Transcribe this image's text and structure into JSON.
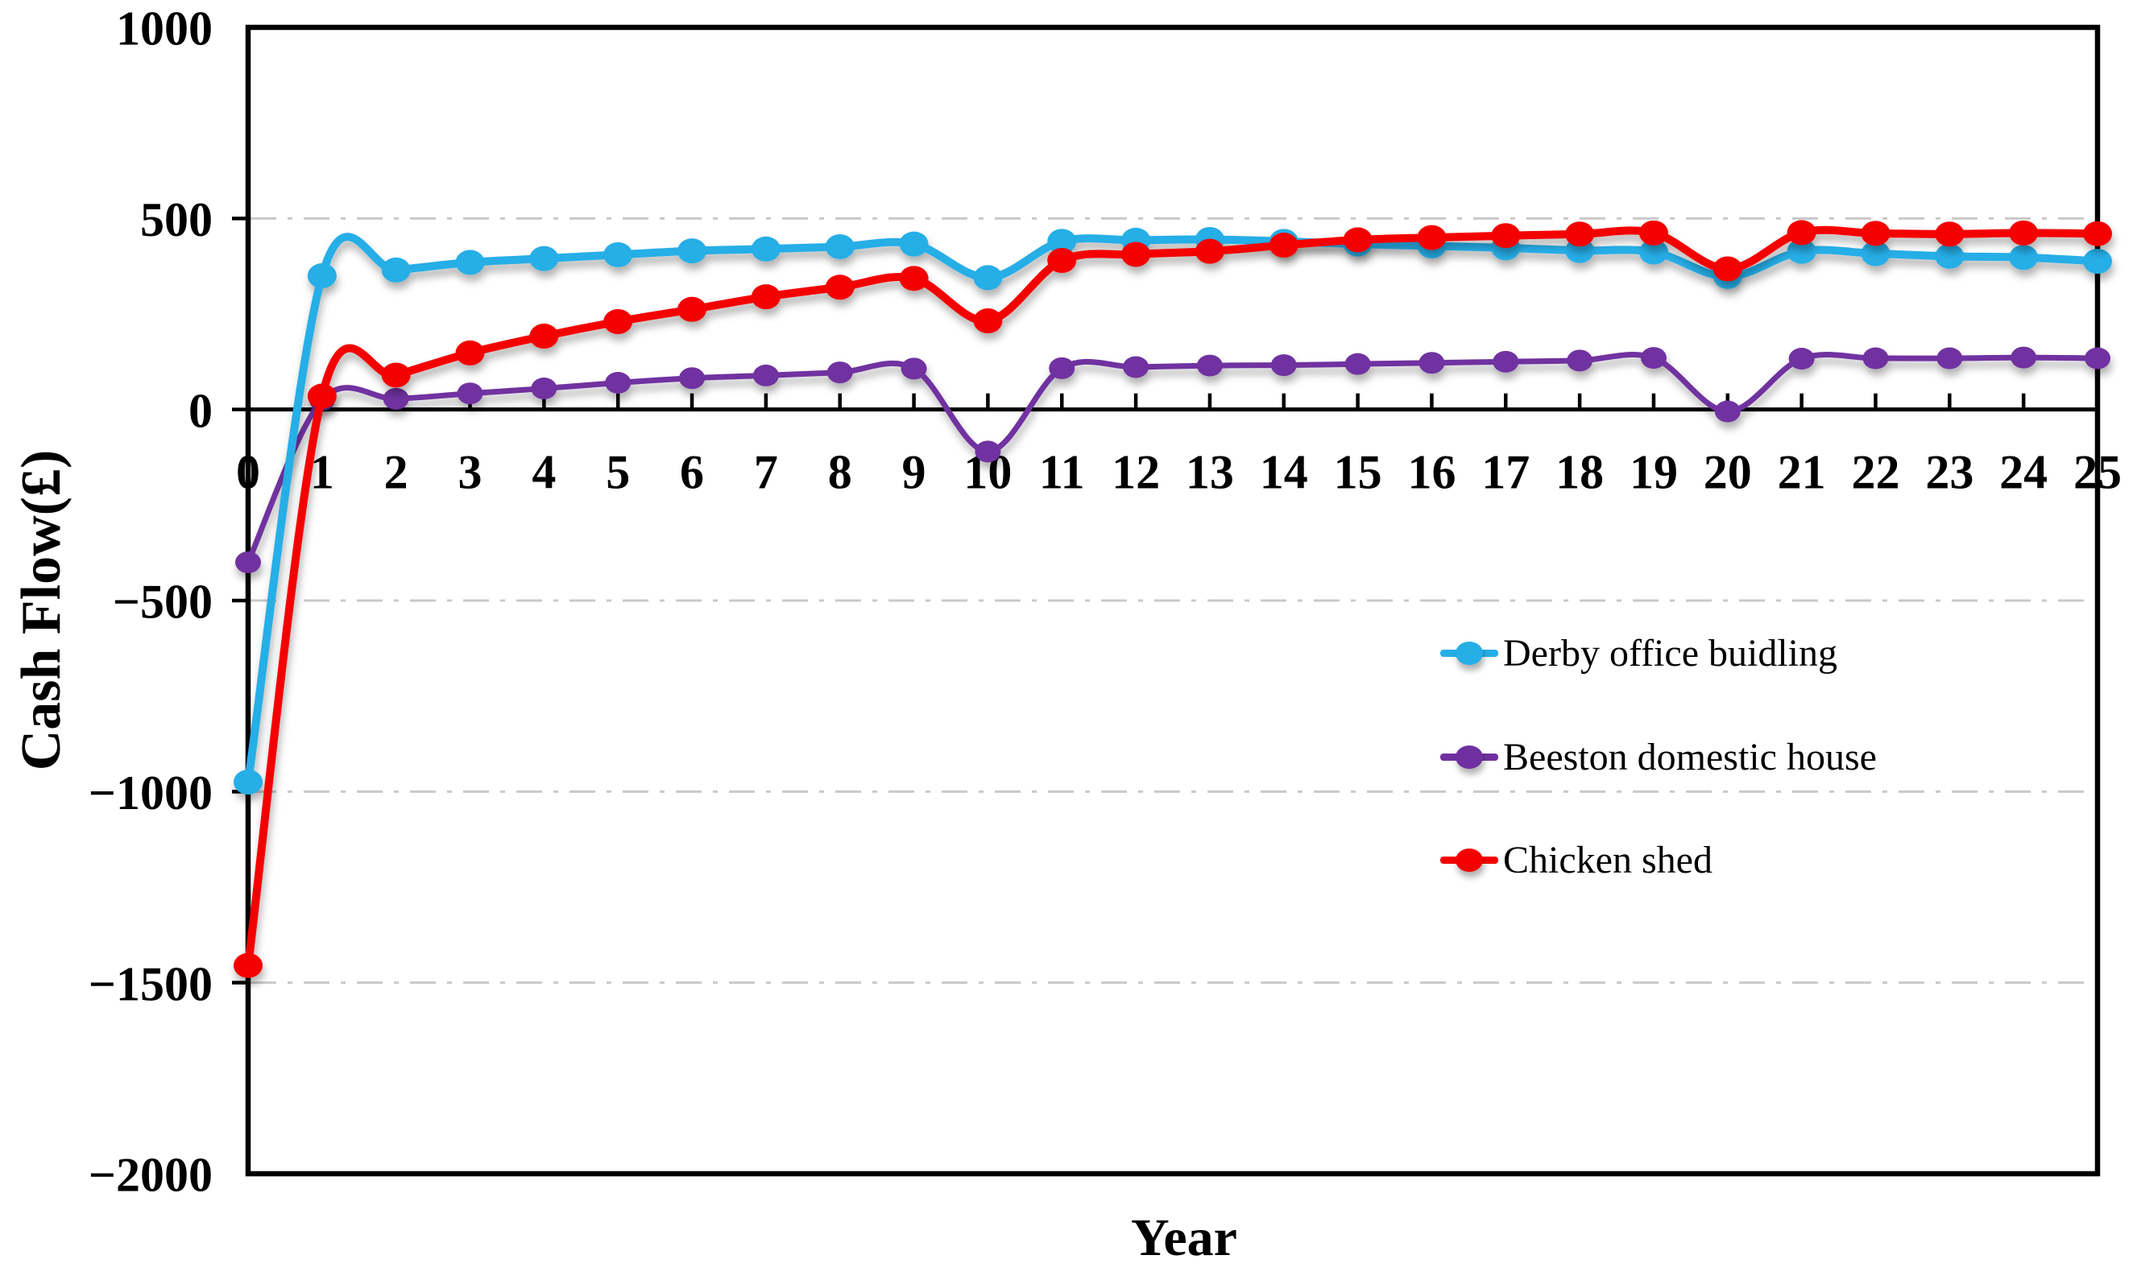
{
  "figure": {
    "background": "#ffffff",
    "axis_color": "#000000",
    "gridline_color": "#c9c9c9",
    "y_axis_title": "Cash Flow(£)",
    "x_axis_title": "Year"
  },
  "chart_data": {
    "type": "line",
    "title": "",
    "xlabel": "Year",
    "ylabel": "Cash Flow(£)",
    "xlim": [
      0,
      25
    ],
    "ylim": [
      -2000,
      1000
    ],
    "grid": "horizontal dash-dot gridlines at 500, -500, -1000, -1500",
    "legend_position": "inside-right-center",
    "x": [
      0,
      1,
      2,
      3,
      4,
      5,
      6,
      7,
      8,
      9,
      10,
      11,
      12,
      13,
      14,
      15,
      16,
      17,
      18,
      19,
      20,
      21,
      22,
      23,
      24,
      25
    ],
    "x_tick_labels": [
      "0",
      "1",
      "2",
      "3",
      "4",
      "5",
      "6",
      "7",
      "8",
      "9",
      "10",
      "11",
      "12",
      "13",
      "14",
      "15",
      "16",
      "17",
      "18",
      "19",
      "20",
      "21",
      "22",
      "23",
      "24",
      "25"
    ],
    "y_ticks": [
      1000,
      500,
      0,
      -500,
      -1000,
      -1500,
      -2000
    ],
    "y_tick_labels": [
      "1000",
      "500",
      "0",
      "−500",
      "−1000",
      "−1500",
      "−2000"
    ],
    "series": [
      {
        "name": "Derby office buidling",
        "color": "#26AEE7",
        "marker": "circle",
        "values": [
          -975,
          350,
          365,
          385,
          395,
          405,
          415,
          420,
          426,
          433,
          345,
          440,
          443,
          445,
          440,
          433,
          428,
          423,
          416,
          412,
          348,
          414,
          408,
          401,
          398,
          388
        ]
      },
      {
        "name": "Beeston domestic house",
        "color": "#7030A0",
        "marker": "circle",
        "values": [
          -400,
          25,
          28,
          42,
          55,
          70,
          82,
          89,
          97,
          107,
          -110,
          108,
          111,
          115,
          116,
          119,
          122,
          125,
          128,
          135,
          -5,
          133,
          134,
          134,
          136,
          134
        ]
      },
      {
        "name": "Chicken shed",
        "color": "#F40000",
        "marker": "circle",
        "values": [
          -1455,
          35,
          90,
          148,
          192,
          230,
          262,
          295,
          320,
          343,
          232,
          390,
          406,
          414,
          430,
          444,
          450,
          455,
          459,
          462,
          368,
          463,
          461,
          459,
          462,
          460
        ]
      }
    ]
  }
}
